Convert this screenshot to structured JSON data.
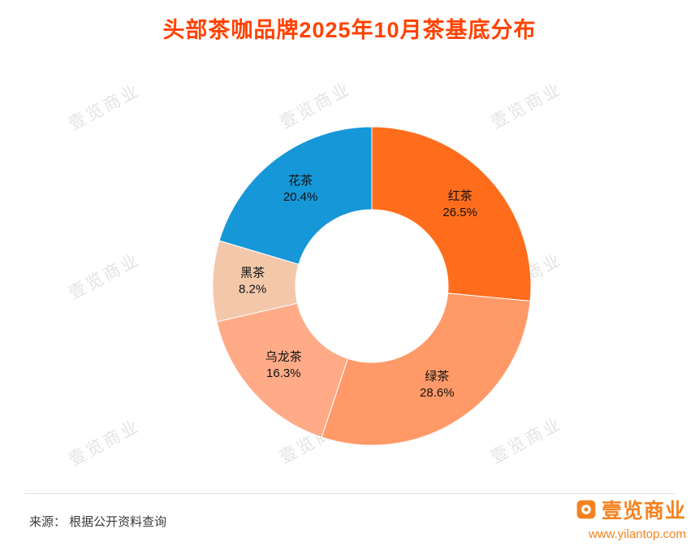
{
  "title": "头部茶咖品牌2025年10月茶基底分布",
  "watermark": {
    "text": "壹览商业"
  },
  "chart_data": {
    "type": "pie",
    "subtype": "donut",
    "title": "头部茶咖品牌2025年10月茶基底分布",
    "categories": [
      "红茶",
      "绿茶",
      "乌龙茶",
      "黑茶",
      "花茶"
    ],
    "values": [
      26.5,
      28.6,
      16.3,
      8.2,
      20.4
    ],
    "colors": [
      "#ff6d1c",
      "#ff9a68",
      "#ffab88",
      "#f3c8aa",
      "#1697d8"
    ],
    "unit": "%",
    "start_angle_deg": 0,
    "direction": "clockwise",
    "inner_radius_ratio": 0.48,
    "legend": "none",
    "label_position": "inside"
  },
  "footer": {
    "source": "来源： 根据公开资料查询",
    "brand": "壹览商业",
    "website": "www.yilantop.com"
  },
  "colors": {
    "title": "#ff4200",
    "brand_orange": "#f5821f",
    "label_text": "#111111",
    "source_text": "#3c3c3c",
    "divider": "#e4e4e4"
  }
}
